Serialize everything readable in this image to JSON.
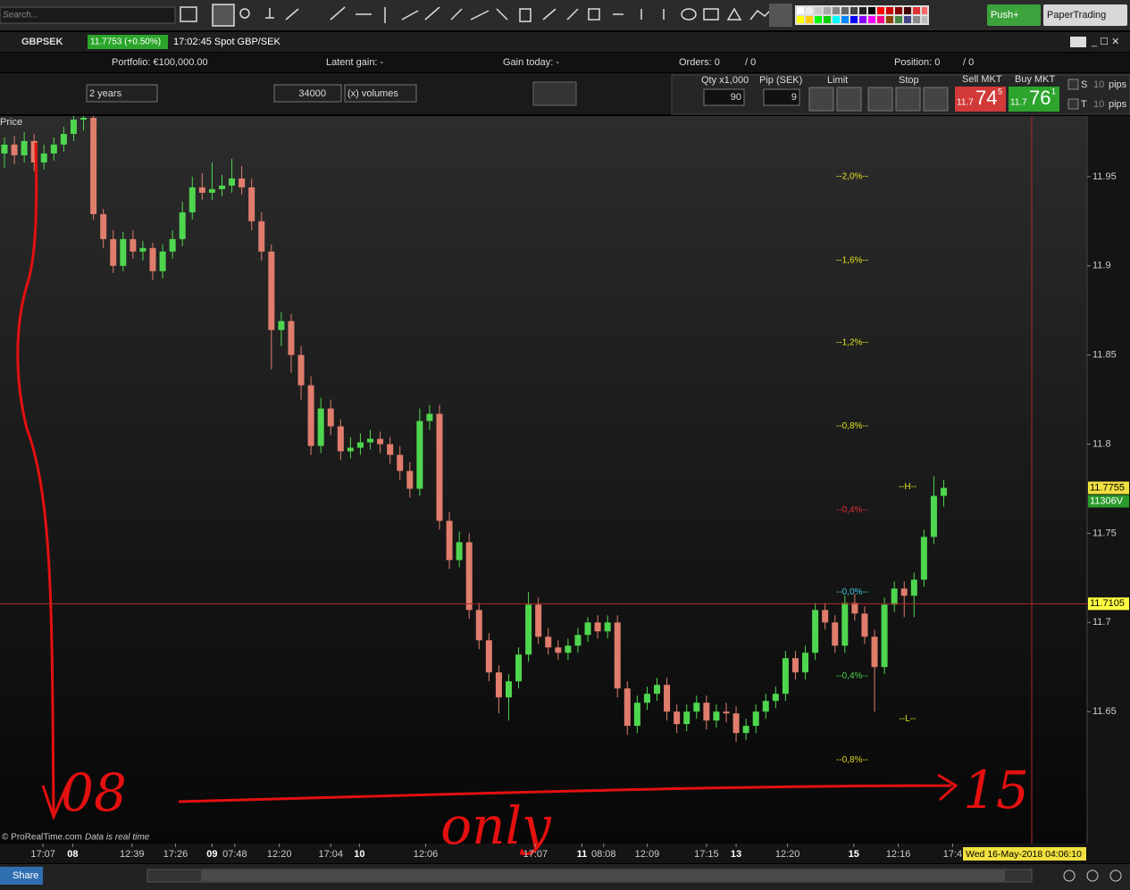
{
  "toolbar": {
    "search": "Search..."
  },
  "instrument": {
    "symbol": "GBPSEK",
    "quote": "11.7753 (+0.50%)",
    "time": "17:02:45 Spot GBP/SEK"
  },
  "account": {
    "portfolio": "Portfolio: €100,000.00",
    "latent": "Latent gain: -",
    "gain_today": "Gain today: -",
    "orders": "Orders: 0",
    "orders_sub": "/ 0",
    "position": "Position: 0",
    "position_sub": "/ 0"
  },
  "controls": {
    "period": "2 years",
    "units": "34000",
    "units_type": "(x) volumes"
  },
  "order_panel": {
    "qty_label": "Qty x1,000",
    "pip_label": "Pip (SEK)",
    "qty": "90",
    "pip": "9",
    "limit": "Limit",
    "stop": "Stop",
    "sell_label": "Sell MKT",
    "buy_label": "Buy MKT",
    "sell_prefix": "11.7",
    "sell_big": "74",
    "sell_sup": "5",
    "buy_prefix": "11.7",
    "buy_big": "76",
    "buy_sup": "1",
    "s": "S",
    "t": "T",
    "s_pips": "10",
    "t_pips": "10",
    "s_unit": "pips",
    "t_unit": "pips"
  },
  "buttons": {
    "push": "Push+",
    "paper": "PaperTrading"
  },
  "footer": {
    "brand": "© ProRealTime.com",
    "realtime": "Data is real time",
    "cursor_date": "Wed 16-May-2018 04:06:10",
    "share": "Share"
  },
  "chart_data": {
    "type": "candlestick",
    "panel_label": "Price",
    "up_color": "#4fd64f",
    "down_color": "#e07d6c",
    "candles": [
      [
        11.963,
        11.972,
        11.955,
        11.968
      ],
      [
        11.968,
        11.973,
        11.957,
        11.962
      ],
      [
        11.962,
        11.975,
        11.958,
        11.97
      ],
      [
        11.97,
        11.974,
        11.953,
        11.958
      ],
      [
        11.958,
        11.968,
        11.954,
        11.963
      ],
      [
        11.963,
        11.972,
        11.959,
        11.968
      ],
      [
        11.968,
        11.978,
        11.964,
        11.974
      ],
      [
        11.974,
        11.984,
        11.97,
        11.982
      ],
      [
        11.982,
        11.984,
        11.976,
        11.983
      ],
      [
        11.983,
        11.984,
        11.926,
        11.929
      ],
      [
        11.929,
        11.932,
        11.91,
        11.915
      ],
      [
        11.915,
        11.92,
        11.896,
        11.9
      ],
      [
        11.9,
        11.919,
        11.897,
        11.915
      ],
      [
        11.915,
        11.92,
        11.904,
        11.908
      ],
      [
        11.908,
        11.914,
        11.903,
        11.91
      ],
      [
        11.91,
        11.913,
        11.892,
        11.897
      ],
      [
        11.897,
        11.912,
        11.893,
        11.908
      ],
      [
        11.908,
        11.92,
        11.904,
        11.915
      ],
      [
        11.915,
        11.936,
        11.911,
        11.93
      ],
      [
        11.93,
        11.95,
        11.926,
        11.944
      ],
      [
        11.944,
        11.952,
        11.937,
        11.941
      ],
      [
        11.941,
        11.958,
        11.937,
        11.943
      ],
      [
        11.943,
        11.951,
        11.939,
        11.945
      ],
      [
        11.945,
        11.96,
        11.941,
        11.949
      ],
      [
        11.949,
        11.956,
        11.94,
        11.944
      ],
      [
        11.944,
        11.949,
        11.92,
        11.925
      ],
      [
        11.925,
        11.93,
        11.903,
        11.908
      ],
      [
        11.908,
        11.912,
        11.842,
        11.864
      ],
      [
        11.864,
        11.874,
        11.855,
        11.869
      ],
      [
        11.869,
        11.873,
        11.84,
        11.85
      ],
      [
        11.85,
        11.855,
        11.825,
        11.833
      ],
      [
        11.833,
        11.838,
        11.794,
        11.799
      ],
      [
        11.799,
        11.826,
        11.795,
        11.82
      ],
      [
        11.82,
        11.825,
        11.805,
        11.81
      ],
      [
        11.81,
        11.814,
        11.791,
        11.796
      ],
      [
        11.796,
        11.804,
        11.792,
        11.798
      ],
      [
        11.798,
        11.806,
        11.794,
        11.801
      ],
      [
        11.801,
        11.808,
        11.797,
        11.803
      ],
      [
        11.803,
        11.807,
        11.795,
        11.8
      ],
      [
        11.8,
        11.804,
        11.789,
        11.794
      ],
      [
        11.794,
        11.799,
        11.78,
        11.785
      ],
      [
        11.785,
        11.79,
        11.77,
        11.775
      ],
      [
        11.775,
        11.82,
        11.771,
        11.813
      ],
      [
        11.813,
        11.822,
        11.808,
        11.817
      ],
      [
        11.817,
        11.822,
        11.752,
        11.757
      ],
      [
        11.757,
        11.762,
        11.73,
        11.735
      ],
      [
        11.735,
        11.751,
        11.731,
        11.745
      ],
      [
        11.745,
        11.75,
        11.702,
        11.707
      ],
      [
        11.707,
        11.711,
        11.685,
        11.69
      ],
      [
        11.69,
        11.694,
        11.667,
        11.672
      ],
      [
        11.672,
        11.676,
        11.649,
        11.658
      ],
      [
        11.658,
        11.671,
        11.645,
        11.667
      ],
      [
        11.667,
        11.686,
        11.663,
        11.682
      ],
      [
        11.682,
        11.717,
        11.678,
        11.71
      ],
      [
        11.71,
        11.714,
        11.688,
        11.692
      ],
      [
        11.692,
        11.697,
        11.682,
        11.686
      ],
      [
        11.686,
        11.69,
        11.679,
        11.683
      ],
      [
        11.683,
        11.691,
        11.679,
        11.687
      ],
      [
        11.687,
        11.697,
        11.683,
        11.693
      ],
      [
        11.693,
        11.703,
        11.689,
        11.7
      ],
      [
        11.7,
        11.704,
        11.691,
        11.695
      ],
      [
        11.695,
        11.704,
        11.691,
        11.7
      ],
      [
        11.7,
        11.704,
        11.658,
        11.663
      ],
      [
        11.663,
        11.667,
        11.637,
        11.642
      ],
      [
        11.642,
        11.659,
        11.638,
        11.655
      ],
      [
        11.655,
        11.664,
        11.651,
        11.66
      ],
      [
        11.66,
        11.669,
        11.656,
        11.665
      ],
      [
        11.665,
        11.669,
        11.645,
        11.65
      ],
      [
        11.65,
        11.654,
        11.638,
        11.643
      ],
      [
        11.643,
        11.654,
        11.639,
        11.65
      ],
      [
        11.65,
        11.659,
        11.646,
        11.655
      ],
      [
        11.655,
        11.659,
        11.64,
        11.645
      ],
      [
        11.645,
        11.654,
        11.641,
        11.65
      ],
      [
        11.65,
        11.655,
        11.644,
        11.649
      ],
      [
        11.649,
        11.653,
        11.633,
        11.638
      ],
      [
        11.638,
        11.646,
        11.634,
        11.642
      ],
      [
        11.642,
        11.654,
        11.638,
        11.65
      ],
      [
        11.65,
        11.66,
        11.646,
        11.656
      ],
      [
        11.656,
        11.664,
        11.652,
        11.66
      ],
      [
        11.66,
        11.684,
        11.656,
        11.68
      ],
      [
        11.68,
        11.684,
        11.668,
        11.672
      ],
      [
        11.672,
        11.687,
        11.668,
        11.683
      ],
      [
        11.683,
        11.711,
        11.679,
        11.707
      ],
      [
        11.707,
        11.711,
        11.696,
        11.7
      ],
      [
        11.7,
        11.704,
        11.683,
        11.687
      ],
      [
        11.687,
        11.715,
        11.683,
        11.711
      ],
      [
        11.711,
        11.716,
        11.701,
        11.705
      ],
      [
        11.705,
        11.709,
        11.688,
        11.692
      ],
      [
        11.692,
        11.696,
        11.65,
        11.675
      ],
      [
        11.675,
        11.714,
        11.671,
        11.71
      ],
      [
        11.71,
        11.723,
        11.706,
        11.719
      ],
      [
        11.719,
        11.723,
        11.703,
        11.715
      ],
      [
        11.715,
        11.728,
        11.703,
        11.724
      ],
      [
        11.724,
        11.752,
        11.72,
        11.748
      ],
      [
        11.748,
        11.782,
        11.744,
        11.771
      ],
      [
        11.771,
        11.78,
        11.765,
        11.7755
      ]
    ],
    "xlim": [
      -0.45,
      109.5
    ],
    "xticks": [
      {
        "value": 3.9,
        "label": "17:07"
      },
      {
        "value": 6.9,
        "label": "08"
      },
      {
        "value": 12.9,
        "label": "12:39"
      },
      {
        "value": 17.3,
        "label": "17:26"
      },
      {
        "value": 21,
        "label": "09"
      },
      {
        "value": 23.3,
        "label": "07:48"
      },
      {
        "value": 27.8,
        "label": "12:20"
      },
      {
        "value": 33,
        "label": "17:04"
      },
      {
        "value": 35.9,
        "label": "10"
      },
      {
        "value": 42.6,
        "label": "12:06"
      },
      {
        "value": 53.7,
        "label": "17:07"
      },
      {
        "value": 58.4,
        "label": "11"
      },
      {
        "value": 60.6,
        "label": "08:08"
      },
      {
        "value": 65,
        "label": "12:09"
      },
      {
        "value": 71,
        "label": "17:15"
      },
      {
        "value": 74,
        "label": "13"
      },
      {
        "value": 79.2,
        "label": "12:20"
      },
      {
        "value": 85.9,
        "label": "15"
      },
      {
        "value": 90.4,
        "label": "12:16"
      },
      {
        "value": 95.9,
        "label": "17:4"
      }
    ],
    "ylim": [
      11.576,
      11.984
    ],
    "yticks": [
      11.95,
      11.9,
      11.85,
      11.8,
      11.75,
      11.7,
      11.65
    ],
    "last_price": 11.7755,
    "last_volume": "11306V",
    "crosshair_price": 11.7105,
    "levels": [
      {
        "value": 11.95,
        "label": "--2,0%--",
        "color": "#e0e020"
      },
      {
        "value": 11.903,
        "label": "--1,6%--",
        "color": "#e0e020"
      },
      {
        "value": 11.857,
        "label": "--1,2%--",
        "color": "#e0e020"
      },
      {
        "value": 11.81,
        "label": "--0,8%--",
        "color": "#e0e020"
      },
      {
        "value": 11.763,
        "label": "--0,4%--",
        "color": "#e03030"
      },
      {
        "value": 11.717,
        "label": "--0,0%--",
        "color": "#40c8e0"
      },
      {
        "value": 11.67,
        "label": "--0,4%--",
        "color": "#50d050"
      },
      {
        "value": 11.623,
        "label": "--0,8%--",
        "color": "#d8d820"
      }
    ],
    "high_low": [
      {
        "value": 11.776,
        "label": "--H--"
      },
      {
        "value": 11.646,
        "label": "--L--"
      }
    ],
    "annotations": [
      "08",
      "only",
      "15"
    ]
  }
}
